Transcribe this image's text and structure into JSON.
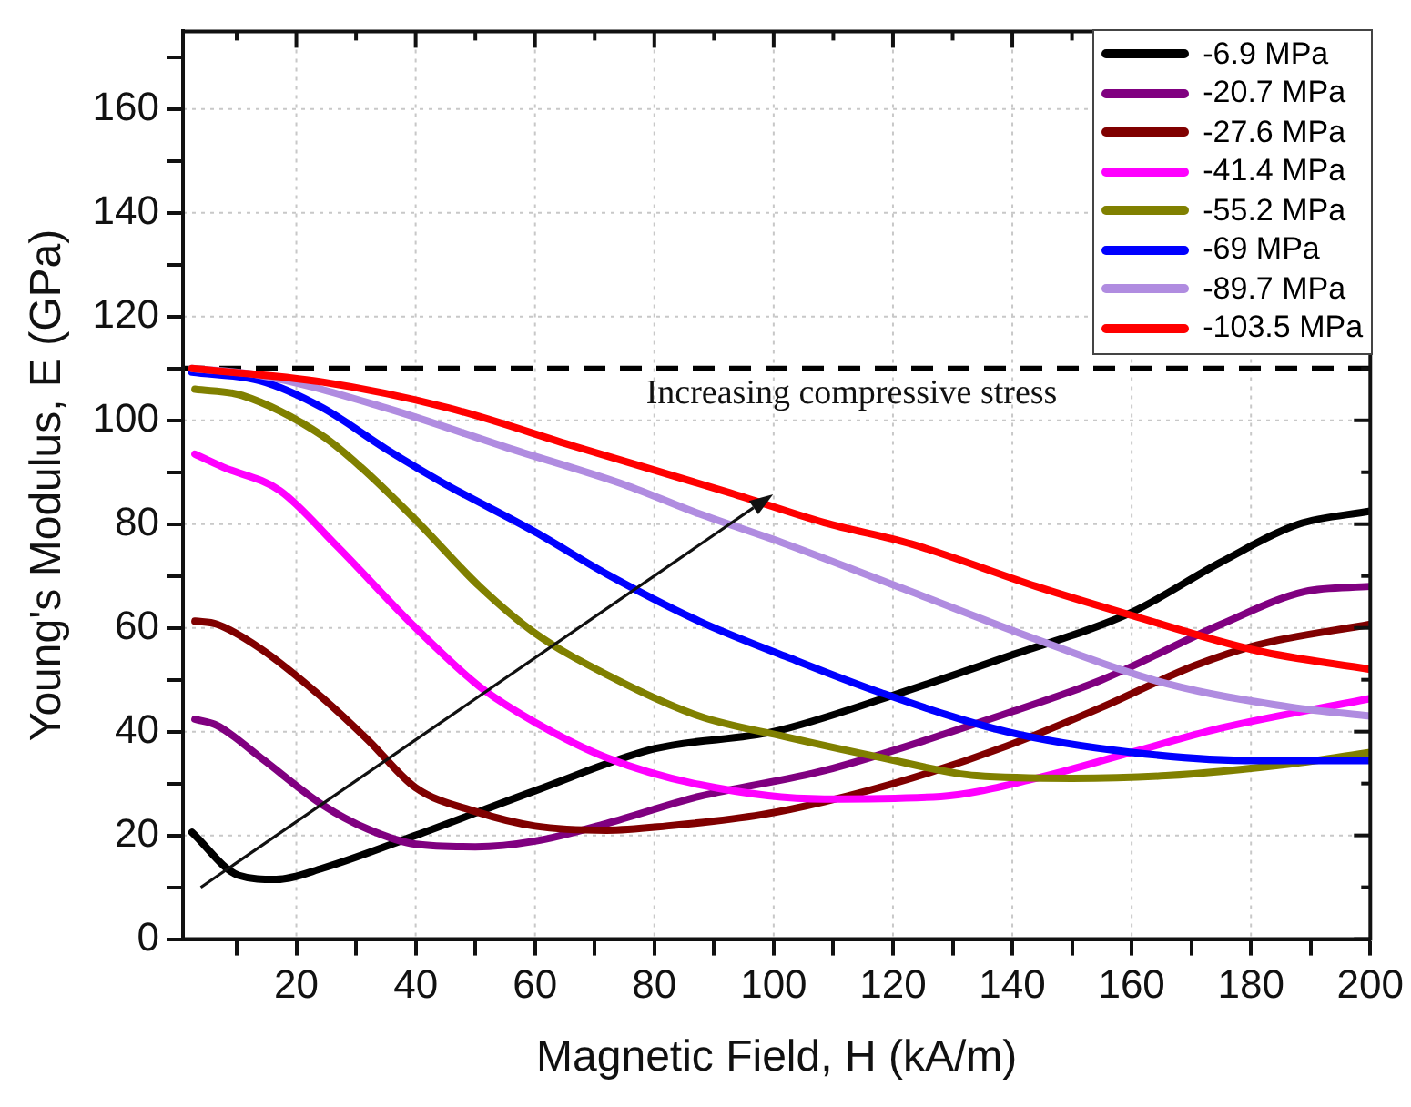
{
  "chart_data": {
    "type": "line",
    "xlabel": "Magnetic Field, H (kA/m)",
    "ylabel": "Young's Modulus, E (GPa)",
    "xlim": [
      1,
      200
    ],
    "xticks": [
      {
        "value": 10,
        "label": null
      },
      20,
      {
        "value": 30,
        "label": null
      },
      40,
      {
        "value": 50,
        "label": null
      },
      60,
      {
        "value": 70,
        "label": null
      },
      80,
      {
        "value": 90,
        "label": null
      },
      100,
      {
        "value": 110,
        "label": null
      },
      120,
      {
        "value": 130,
        "label": null
      },
      140,
      {
        "value": 150,
        "label": null
      },
      160,
      {
        "value": 170,
        "label": null
      },
      180,
      {
        "value": 190,
        "label": null
      },
      200
    ],
    "ylim": [
      0,
      175
    ],
    "yticks": [
      0,
      {
        "value": 10,
        "label": null
      },
      20,
      {
        "value": 30,
        "label": null
      },
      40,
      {
        "value": 50,
        "label": null
      },
      60,
      {
        "value": 70,
        "label": null
      },
      80,
      {
        "value": 90,
        "label": null
      },
      100,
      {
        "value": 110,
        "label": null
      },
      120,
      {
        "value": 130,
        "label": null
      },
      140,
      {
        "value": 150,
        "label": null
      },
      160,
      {
        "value": 170,
        "label": null
      }
    ],
    "grid": true,
    "legend": "top right",
    "marker": "none",
    "line_style": "solid",
    "ref_lines": [
      {
        "axis": "y",
        "value": 110,
        "color": "#000000",
        "line_style": "dashed"
      }
    ],
    "annotations": [
      "Increasing compressive stress"
    ],
    "series": [
      {
        "name": "-6.9 MPa",
        "color": "#000000",
        "x": [
          2.5,
          10.3,
          16.6,
          24.5,
          40,
          60,
          80,
          100,
          120,
          139,
          160,
          175,
          188,
          200
        ],
        "values": [
          20.6,
          12.3,
          11.5,
          13.7,
          20,
          28.6,
          36.7,
          40,
          47,
          54.4,
          63,
          72.7,
          80,
          82.5
        ]
      },
      {
        "name": "-20.7 MPa",
        "color": "#800080",
        "x": [
          3,
          6.7,
          14,
          24.5,
          32,
          40,
          50,
          60,
          72,
          87.5,
          108.5,
          139,
          155,
          175,
          189,
          200
        ],
        "values": [
          42.4,
          41.2,
          35,
          25.8,
          21.2,
          18.3,
          17.8,
          18.9,
          22.3,
          27.5,
          32.5,
          43.5,
          50,
          60.7,
          67,
          68
        ]
      },
      {
        "name": "-27.6 MPa",
        "color": "#800000",
        "x": [
          3,
          6.7,
          14,
          24.5,
          32,
          40,
          50,
          60,
          72,
          82,
          98,
          108.5,
          123,
          139,
          155,
          170.5,
          181,
          200
        ],
        "values": [
          61.3,
          60.7,
          56,
          46.4,
          38.4,
          29.2,
          24.6,
          21.8,
          21,
          21.8,
          24,
          26.5,
          31,
          37.2,
          44.7,
          52.7,
          56.7,
          60.7
        ]
      },
      {
        "name": "-41.4 MPa",
        "color": "#ff00ff",
        "x": [
          3,
          7.7,
          17.2,
          26.6,
          40,
          50.7,
          60,
          72,
          87.5,
          108.5,
          128,
          144,
          160,
          175,
          200
        ],
        "values": [
          93.5,
          91,
          86.5,
          76,
          60,
          48.7,
          41.8,
          35,
          29.8,
          27,
          27.5,
          31,
          36,
          40.7,
          46.4
        ]
      },
      {
        "name": "-55.2 MPa",
        "color": "#808000",
        "x": [
          3,
          10.9,
          24.4,
          30.8,
          40,
          50.7,
          60,
          72,
          87.5,
          102,
          118,
          134,
          150,
          165.7,
          186.8,
          200
        ],
        "values": [
          106,
          104.8,
          97,
          91,
          80.8,
          68,
          59,
          51,
          43,
          39,
          35,
          31.5,
          31,
          31.5,
          33.8,
          36
        ]
      },
      {
        "name": "-69 MPa",
        "color": "#0000ff",
        "x": [
          2.5,
          14,
          24.4,
          35,
          44.5,
          60,
          72,
          87.5,
          102,
          118,
          139,
          160,
          181,
          200
        ],
        "values": [
          109.3,
          107.6,
          102.4,
          94.5,
          88,
          78.5,
          70.4,
          61.3,
          54.5,
          47.5,
          40,
          36,
          34.4,
          34.4
        ]
      },
      {
        "name": "-89.7 MPa",
        "color": "#b08ce0",
        "x": [
          2.5,
          14,
          35,
          56,
          75,
          87.5,
          102,
          123,
          144,
          165.7,
          186.8,
          200
        ],
        "values": [
          110,
          108.7,
          102.4,
          94.5,
          87.6,
          82,
          76.2,
          67,
          57.8,
          49.3,
          44.7,
          43
        ]
      },
      {
        "name": "-103.5 MPa",
        "color": "#ff0000",
        "x": [
          2.5,
          24.4,
          45.5,
          66.6,
          92.8,
          108.5,
          123,
          144,
          160,
          181,
          200
        ],
        "values": [
          110,
          107.4,
          102.4,
          95,
          86,
          80.3,
          76.2,
          68,
          62.4,
          55.6,
          52
        ]
      }
    ]
  }
}
